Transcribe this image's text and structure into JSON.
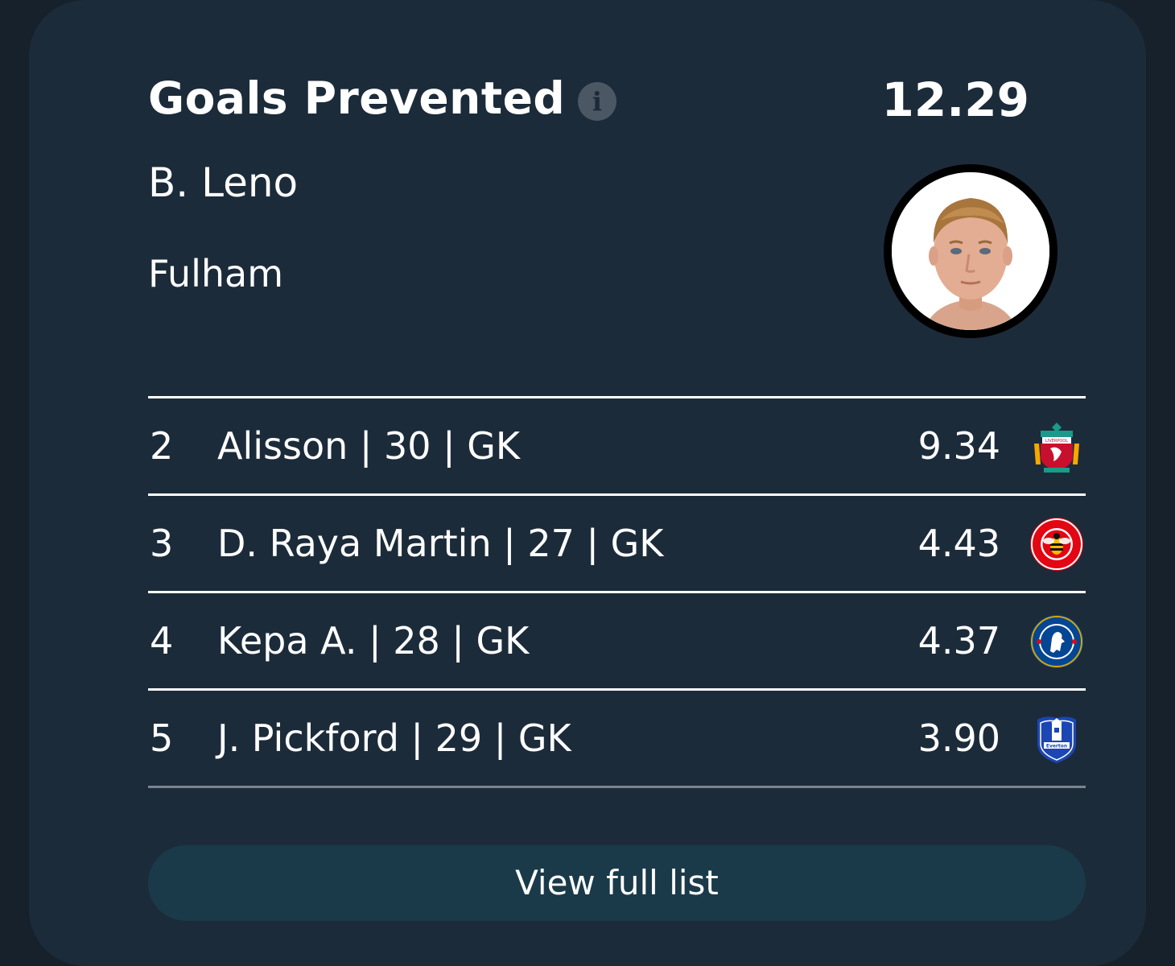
{
  "leader": {
    "stat_title": "Goals Prevented",
    "info_icon": "info-icon",
    "value": "12.29",
    "name": "B. Leno",
    "team": "Fulham"
  },
  "rows": [
    {
      "rank": "2",
      "player": "Alisson | 30 | GK",
      "value": "9.34",
      "crest": "liverpool-crest-icon"
    },
    {
      "rank": "3",
      "player": "D. Raya Martin | 27 | GK",
      "value": "4.43",
      "crest": "brentford-crest-icon"
    },
    {
      "rank": "4",
      "player": "Kepa A. | 28 | GK",
      "value": "4.37",
      "crest": "chelsea-crest-icon"
    },
    {
      "rank": "5",
      "player": "J. Pickford | 29 | GK",
      "value": "3.90",
      "crest": "everton-crest-icon"
    }
  ],
  "cta": {
    "label": "View full list"
  },
  "colors": {
    "background": "#17212b",
    "card": "#1c2b3a",
    "button": "#1a3a4a"
  }
}
